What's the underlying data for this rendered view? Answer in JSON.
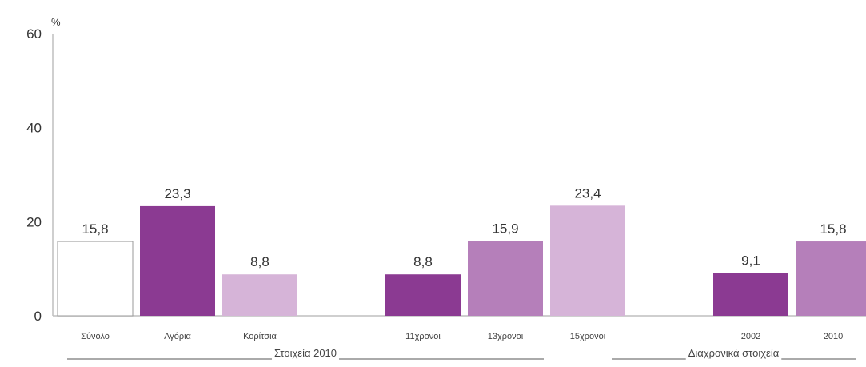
{
  "chart_data": {
    "type": "bar",
    "unit": "%",
    "ylim": [
      0,
      60
    ],
    "yticks": [
      0,
      20,
      40,
      60
    ],
    "categories": [
      "Σύνολο",
      "Αγόρια",
      "Κορίτσια",
      "11χρονοι",
      "13χρονοι",
      "15χρονοι",
      "2002",
      "2010"
    ],
    "values": [
      15.8,
      23.3,
      8.8,
      8.8,
      15.9,
      23.4,
      9.1,
      15.8
    ],
    "value_labels": [
      "15,8",
      "23,3",
      "8,8",
      "8,8",
      "15,9",
      "23,4",
      "9,1",
      "15,8"
    ],
    "bar_colors": [
      "#ffffff",
      "#8b3a92",
      "#d6b4d8",
      "#8b3a92",
      "#b57fba",
      "#d6b4d8",
      "#8b3a92",
      "#b57fba"
    ],
    "groups": [
      {
        "label": "Στοιχεία 2010",
        "categories": [
          "Σύνολο",
          "Αγόρια",
          "Κορίτσια",
          "11χρονοι",
          "13χρονοι",
          "15χρονοι"
        ]
      },
      {
        "label": "Διαχρονικά στοιχεία",
        "categories": [
          "2002",
          "2010"
        ]
      }
    ],
    "grid": false
  }
}
